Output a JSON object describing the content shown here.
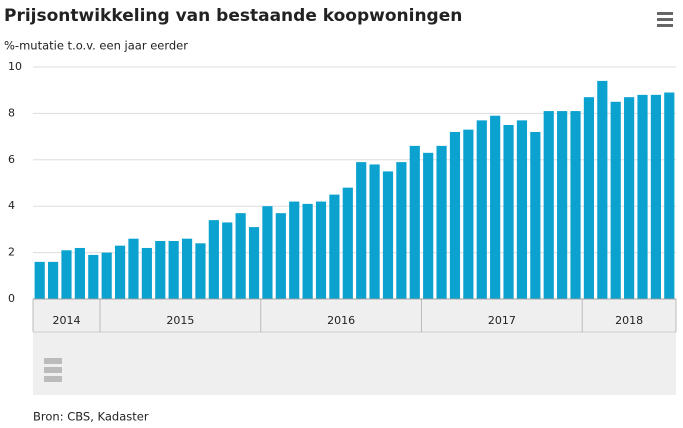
{
  "chart_data": {
    "type": "bar",
    "title": "Prijsontwikkeling van bestaande koopwoningen",
    "subtitle": "%-mutatie t.o.v. een jaar eerder",
    "source": "Bron: CBS, Kadaster",
    "color": "#0ba2cf",
    "categories": [
      "2014",
      null,
      null,
      null,
      null,
      "2015",
      null,
      null,
      null,
      null,
      null,
      null,
      null,
      null,
      null,
      null,
      null,
      "2016",
      null,
      null,
      null,
      null,
      null,
      null,
      null,
      null,
      null,
      null,
      null,
      "2017",
      null,
      null,
      null,
      null,
      null,
      null,
      null,
      null,
      null,
      null,
      null,
      "2018",
      null,
      null,
      null,
      null,
      null,
      null
    ],
    "values": [
      1.6,
      1.6,
      2.1,
      2.2,
      1.9,
      2.0,
      2.3,
      2.6,
      2.2,
      2.5,
      2.5,
      2.6,
      2.4,
      3.4,
      3.3,
      3.7,
      3.1,
      4.0,
      3.7,
      4.2,
      4.1,
      4.2,
      4.5,
      4.8,
      5.9,
      5.8,
      5.5,
      5.9,
      6.6,
      6.3,
      6.6,
      7.2,
      7.3,
      7.7,
      7.9,
      7.5,
      7.7,
      7.2,
      8.1,
      8.1,
      8.1,
      8.7,
      9.4,
      8.5,
      8.7,
      8.8,
      8.8,
      8.9
    ],
    "ylim": [
      0,
      10
    ],
    "yticks": [
      0,
      2,
      4,
      6,
      8,
      10
    ],
    "grid": true
  }
}
